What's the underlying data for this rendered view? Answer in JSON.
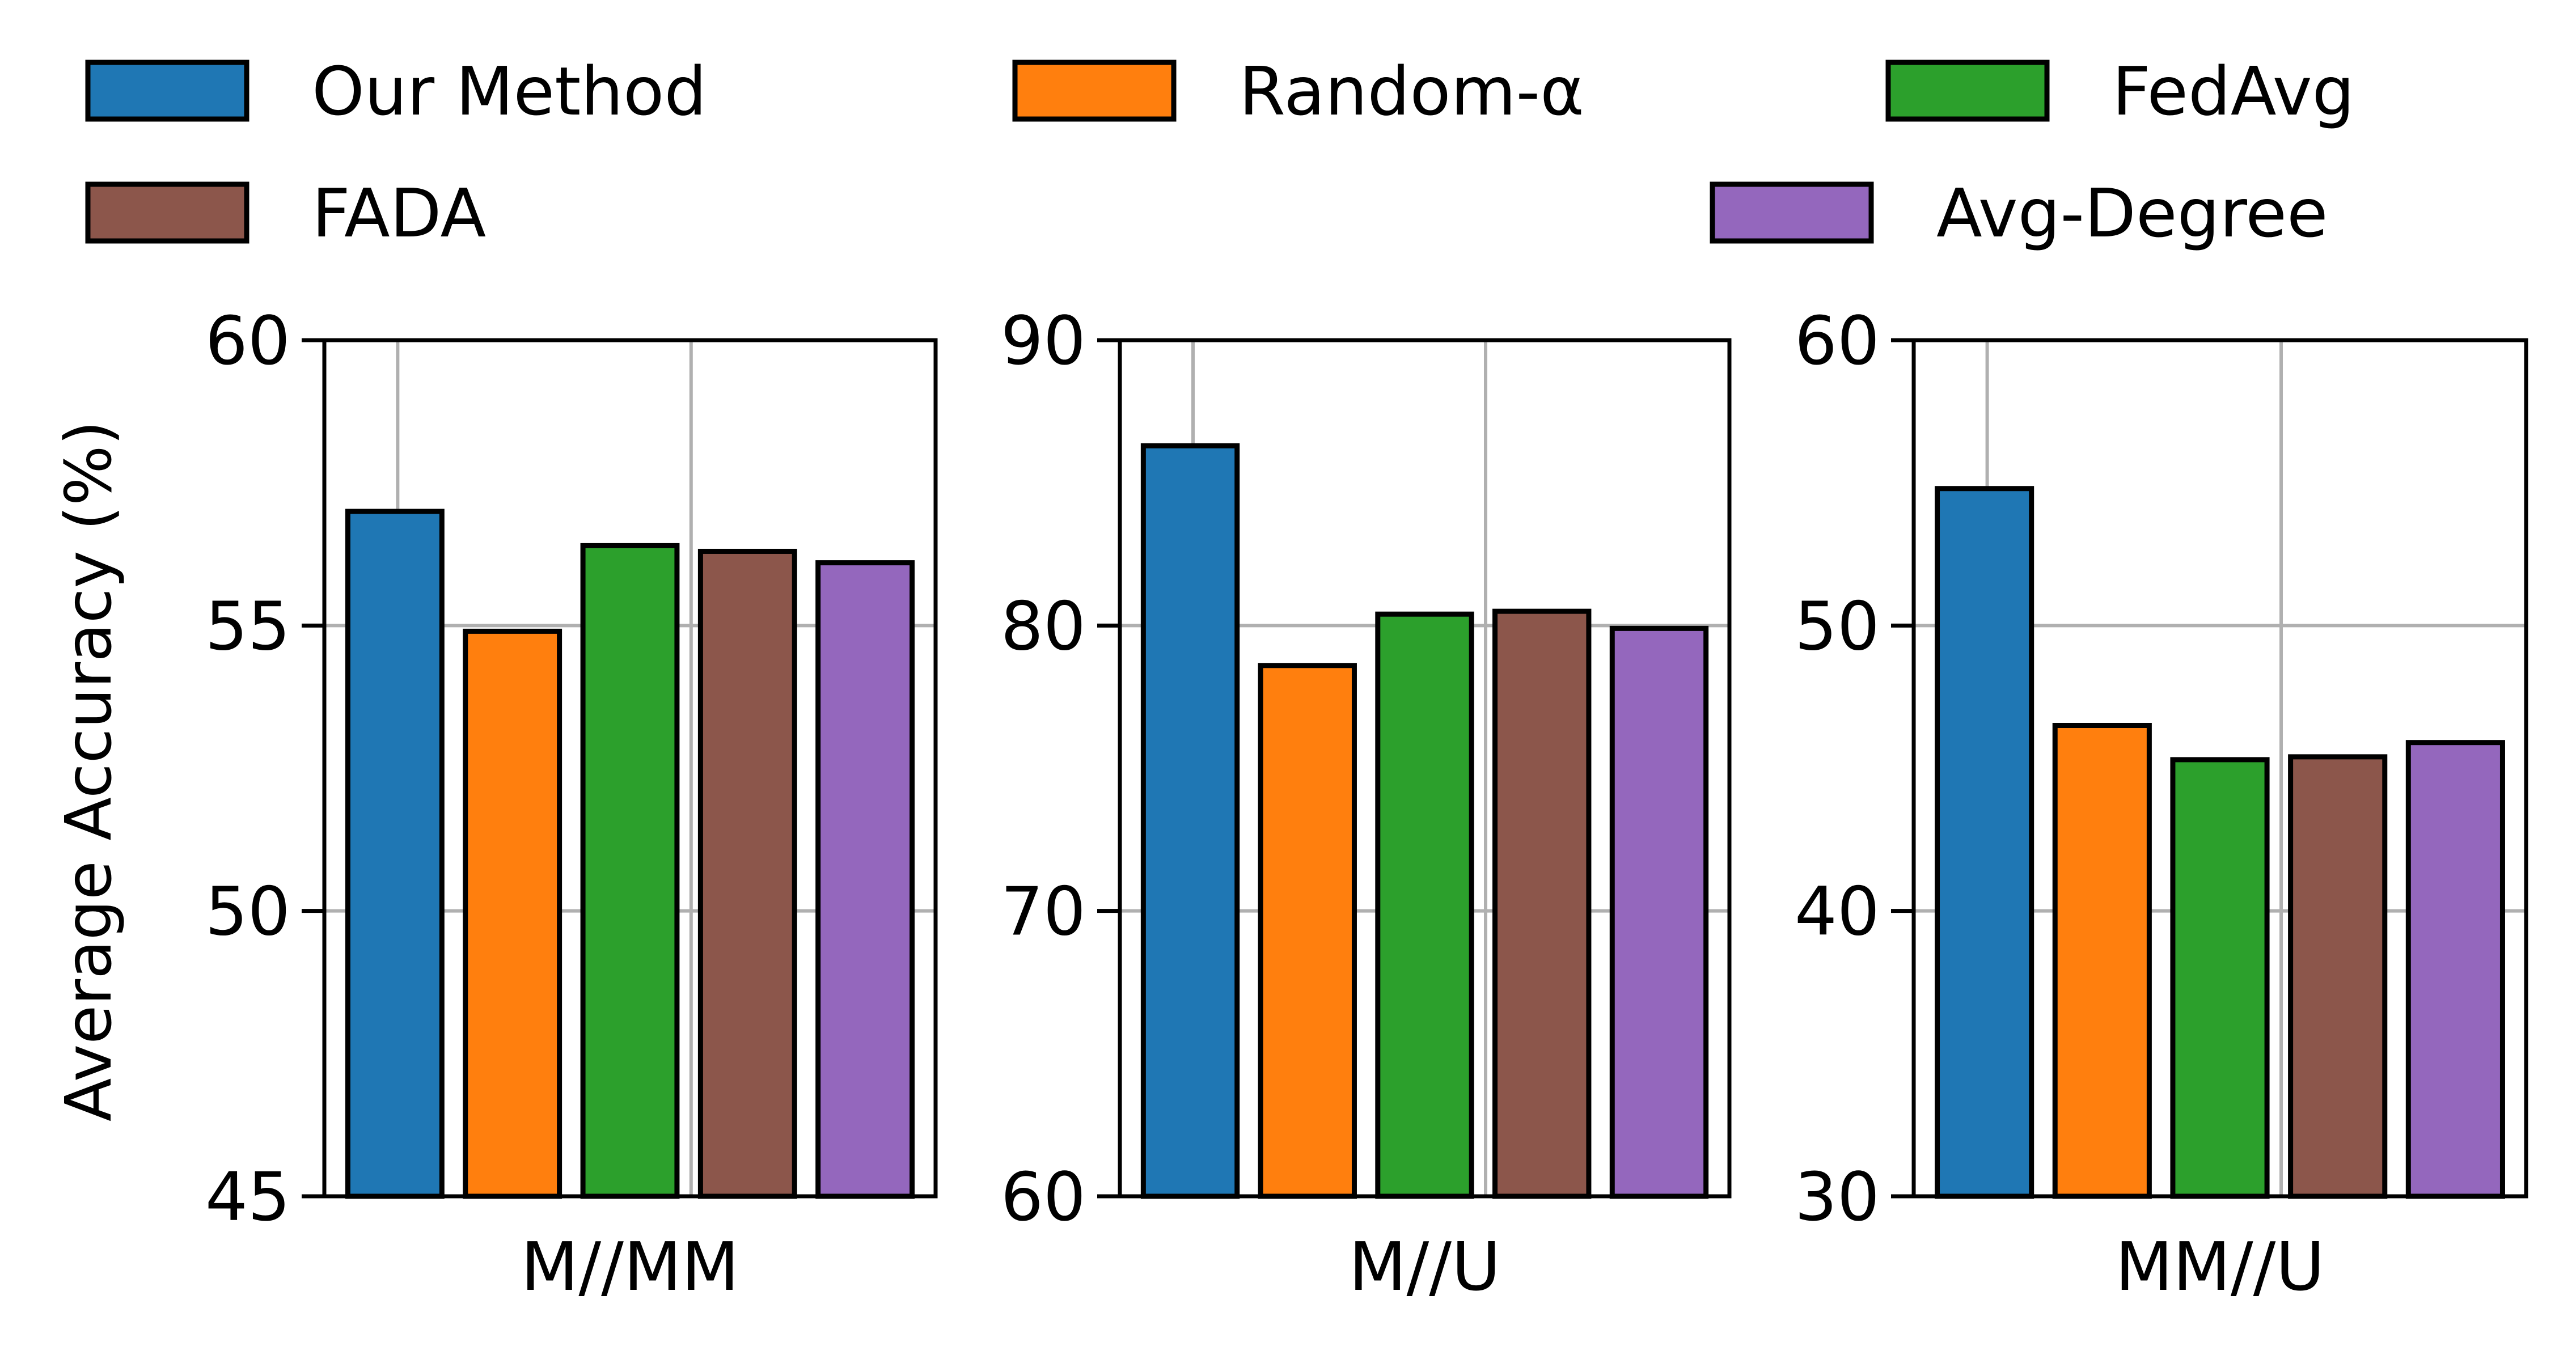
{
  "chart_data": {
    "type": "bar",
    "ylabel": "Average Accuracy (%)",
    "legend": {
      "placement": "top",
      "entries": [
        {
          "name": "Our Method",
          "color": "#1f77b4"
        },
        {
          "name": "Random-α",
          "color": "#ff7f0e"
        },
        {
          "name": "FedAvg",
          "color": "#2ca02c"
        },
        {
          "name": "FADA",
          "color": "#8c564b"
        },
        {
          "name": "Avg-Degree",
          "color": "#9467bd"
        }
      ]
    },
    "grid": true,
    "panels": [
      {
        "category": "M//MM",
        "ylim": [
          45,
          60
        ],
        "yticks": [
          "45",
          "50",
          "55",
          "60"
        ],
        "series": [
          {
            "name": "Our Method",
            "value": 57.0
          },
          {
            "name": "Random-α",
            "value": 54.9
          },
          {
            "name": "FedAvg",
            "value": 56.4
          },
          {
            "name": "FADA",
            "value": 56.3
          },
          {
            "name": "Avg-Degree",
            "value": 56.1
          }
        ]
      },
      {
        "category": "M//U",
        "ylim": [
          60,
          90
        ],
        "yticks": [
          "60",
          "70",
          "80",
          "90"
        ],
        "series": [
          {
            "name": "Our Method",
            "value": 86.3
          },
          {
            "name": "Random-α",
            "value": 78.6
          },
          {
            "name": "FedAvg",
            "value": 80.4
          },
          {
            "name": "FADA",
            "value": 80.5
          },
          {
            "name": "Avg-Degree",
            "value": 79.9
          }
        ]
      },
      {
        "category": "MM//U",
        "ylim": [
          30,
          60
        ],
        "yticks": [
          "30",
          "40",
          "50",
          "60"
        ],
        "series": [
          {
            "name": "Our Method",
            "value": 54.8
          },
          {
            "name": "Random-α",
            "value": 46.5
          },
          {
            "name": "FedAvg",
            "value": 45.3
          },
          {
            "name": "FADA",
            "value": 45.4
          },
          {
            "name": "Avg-Degree",
            "value": 45.9
          }
        ]
      }
    ]
  }
}
